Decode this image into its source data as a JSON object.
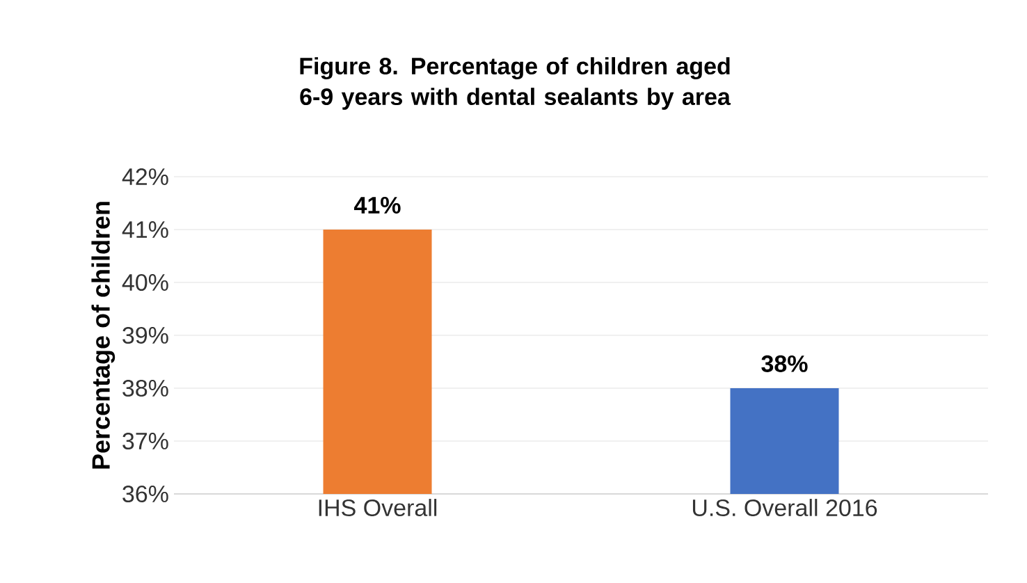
{
  "chart_data": {
    "type": "bar",
    "title": "Figure 8. Percentage of children aged 6-9 years with dental sealants by area",
    "ylabel": "Percentage of children",
    "categories": [
      "IHS Overall",
      "U.S. Overall 2016"
    ],
    "values": [
      41,
      38
    ],
    "colors": [
      "#ed7d31",
      "#4472c4"
    ],
    "value_labels": [
      "41%",
      "38%"
    ],
    "ylim": [
      36,
      42
    ],
    "yticks": [
      {
        "value": 36,
        "label": "36%"
      },
      {
        "value": 37,
        "label": "37%"
      },
      {
        "value": 38,
        "label": "38%"
      },
      {
        "value": 39,
        "label": "39%"
      },
      {
        "value": 40,
        "label": "40%"
      },
      {
        "value": 41,
        "label": "41%"
      },
      {
        "value": 42,
        "label": "42%"
      }
    ],
    "grid": "y"
  }
}
